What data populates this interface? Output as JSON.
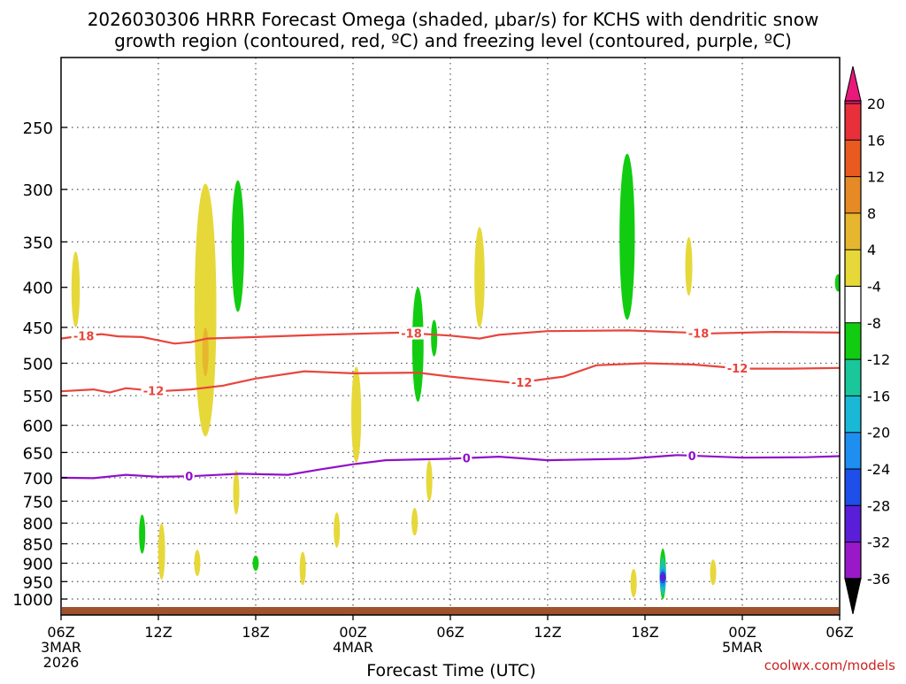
{
  "title_line1": "2026030306 HRRR Forecast Omega (shaded, μbar/s) for KCHS with dendritic snow",
  "title_line2": "growth region (contoured, red, ºC) and freezing level (contoured, purple, ºC)",
  "xlabel": "Forecast Time (UTC)",
  "credit": "coolwx.com/models",
  "colors": {
    "omega_pos_4": "#e6d839",
    "omega_pos_8": "#e6b72e",
    "omega_pos_12": "#e68a25",
    "omega_pos_16": "#e85a1f",
    "omega_pos_20": "#e8303a",
    "omega_pos_max": "#e8197a",
    "omega_neg_8": "#12cc12",
    "omega_neg_12": "#19c79a",
    "omega_neg_16": "#19b8d6",
    "omega_neg_20": "#1e8ef0",
    "omega_neg_24": "#1e4fe8",
    "omega_neg_28": "#5a1ed8",
    "omega_neg_32": "#9919c9",
    "omega_neg_36": "#a0a0a0",
    "omega_neg_min": "#000000",
    "dgz_contour": "#e8453c",
    "freezing_contour": "#9010c8",
    "terrain": "#a0522d",
    "credit": "#cc2222"
  },
  "chart_data": {
    "type": "heatmap",
    "y_axis": {
      "label": "",
      "scale": "log-pressure",
      "range_hPa": [
        200,
        1040
      ],
      "ticks": [
        250,
        300,
        350,
        400,
        450,
        500,
        550,
        600,
        650,
        700,
        750,
        800,
        850,
        900,
        950,
        1000
      ]
    },
    "x_axis": {
      "label": "Forecast Time (UTC)",
      "range_hours": [
        0,
        48
      ],
      "ticks": [
        {
          "hour": 0,
          "label": "06Z",
          "sub1": "3MAR",
          "sub2": "2026"
        },
        {
          "hour": 6,
          "label": "12Z"
        },
        {
          "hour": 12,
          "label": "18Z"
        },
        {
          "hour": 18,
          "label": "00Z",
          "sub1": "4MAR"
        },
        {
          "hour": 24,
          "label": "06Z"
        },
        {
          "hour": 30,
          "label": "12Z"
        },
        {
          "hour": 36,
          "label": "18Z"
        },
        {
          "hour": 42,
          "label": "00Z",
          "sub1": "5MAR"
        },
        {
          "hour": 48,
          "label": "06Z"
        }
      ]
    },
    "grid": true,
    "colorbar": {
      "ticks": [
        20,
        16,
        12,
        8,
        4,
        -4,
        -8,
        -12,
        -16,
        -20,
        -24,
        -28,
        -32,
        -36
      ],
      "bins": [
        {
          "from": 20,
          "to": 24,
          "color": "#e8197a"
        },
        {
          "from": 16,
          "to": 20,
          "color": "#e8303a"
        },
        {
          "from": 12,
          "to": 16,
          "color": "#e85a1f"
        },
        {
          "from": 8,
          "to": 12,
          "color": "#e68a25"
        },
        {
          "from": 4,
          "to": 8,
          "color": "#e6b72e"
        },
        {
          "from": 4,
          "to": 4,
          "color": "#e6d839"
        },
        {
          "from": -4,
          "to": 4,
          "color": "#ffffff"
        },
        {
          "from": -8,
          "to": -4,
          "color": "#12cc12"
        },
        {
          "from": -12,
          "to": -8,
          "color": "#19c79a"
        },
        {
          "from": -16,
          "to": -12,
          "color": "#19b8d6"
        },
        {
          "from": -20,
          "to": -16,
          "color": "#1e8ef0"
        },
        {
          "from": -24,
          "to": -20,
          "color": "#1e4fe8"
        },
        {
          "from": -28,
          "to": -24,
          "color": "#5a1ed8"
        },
        {
          "from": -32,
          "to": -28,
          "color": "#9919c9"
        },
        {
          "from": -36,
          "to": -32,
          "color": "#a0a0a0"
        }
      ]
    },
    "omega_features": [
      {
        "hour": 0.9,
        "top": 360,
        "bottom": 450,
        "value": 4
      },
      {
        "hour": 8.9,
        "top": 295,
        "bottom": 620,
        "value": 4
      },
      {
        "hour": 8.9,
        "top": 450,
        "bottom": 520,
        "value": 8
      },
      {
        "hour": 10.9,
        "top": 292,
        "bottom": 430,
        "value": -8
      },
      {
        "hour": 5.0,
        "top": 780,
        "bottom": 875,
        "value": -8
      },
      {
        "hour": 6.2,
        "top": 800,
        "bottom": 945,
        "value": 4
      },
      {
        "hour": 10.8,
        "top": 685,
        "bottom": 780,
        "value": 4
      },
      {
        "hour": 8.4,
        "top": 865,
        "bottom": 935,
        "value": 4
      },
      {
        "hour": 12.0,
        "top": 880,
        "bottom": 920,
        "value": -8
      },
      {
        "hour": 14.9,
        "top": 870,
        "bottom": 960,
        "value": 4
      },
      {
        "hour": 17.0,
        "top": 775,
        "bottom": 860,
        "value": 4
      },
      {
        "hour": 18.2,
        "top": 505,
        "bottom": 670,
        "value": 4
      },
      {
        "hour": 22.0,
        "top": 400,
        "bottom": 560,
        "value": -8
      },
      {
        "hour": 23.0,
        "top": 440,
        "bottom": 490,
        "value": -8
      },
      {
        "hour": 21.8,
        "top": 765,
        "bottom": 830,
        "value": 4
      },
      {
        "hour": 22.7,
        "top": 665,
        "bottom": 750,
        "value": 4
      },
      {
        "hour": 25.8,
        "top": 335,
        "bottom": 450,
        "value": 4
      },
      {
        "hour": 34.9,
        "top": 270,
        "bottom": 440,
        "value": -8
      },
      {
        "hour": 38.7,
        "top": 345,
        "bottom": 410,
        "value": 4
      },
      {
        "hour": 47.9,
        "top": 385,
        "bottom": 405,
        "value": -8
      },
      {
        "hour": 35.3,
        "top": 915,
        "bottom": 995,
        "value": 4
      },
      {
        "hour": 40.2,
        "top": 890,
        "bottom": 960,
        "value": 4
      },
      {
        "hour": 37.1,
        "top": 862,
        "bottom": 1000,
        "value": -8
      },
      {
        "hour": 37.1,
        "top": 885,
        "bottom": 990,
        "value": -12
      },
      {
        "hour": 37.1,
        "top": 905,
        "bottom": 975,
        "value": -16
      },
      {
        "hour": 37.1,
        "top": 915,
        "bottom": 965,
        "value": -20
      },
      {
        "hour": 37.1,
        "top": 922,
        "bottom": 955,
        "value": -24
      },
      {
        "hour": 37.1,
        "top": 928,
        "bottom": 948,
        "value": -28
      }
    ],
    "contours": [
      {
        "name": "-18",
        "color_key": "dgz_contour",
        "labels": [
          {
            "hour": 1.4,
            "text": "-18"
          },
          {
            "hour": 21.6,
            "text": "-18"
          },
          {
            "hour": 39.3,
            "text": "-18"
          }
        ],
        "points": [
          [
            0,
            465
          ],
          [
            1,
            462
          ],
          [
            2.5,
            459
          ],
          [
            3.5,
            462
          ],
          [
            5,
            463
          ],
          [
            7,
            472
          ],
          [
            8,
            470
          ],
          [
            9,
            465
          ],
          [
            12,
            463
          ],
          [
            16,
            460
          ],
          [
            19,
            458
          ],
          [
            21,
            457
          ],
          [
            24,
            461
          ],
          [
            25.8,
            465
          ],
          [
            27,
            460
          ],
          [
            30,
            455
          ],
          [
            35,
            454
          ],
          [
            40,
            458
          ],
          [
            44,
            456
          ],
          [
            48,
            457
          ]
        ]
      },
      {
        "name": "-12",
        "color_key": "dgz_contour",
        "labels": [
          {
            "hour": 5.7,
            "text": "-12"
          },
          {
            "hour": 28.4,
            "text": "-12"
          },
          {
            "hour": 41.7,
            "text": "-12"
          }
        ],
        "points": [
          [
            0,
            543
          ],
          [
            2,
            540
          ],
          [
            3,
            545
          ],
          [
            4,
            538
          ],
          [
            6,
            543
          ],
          [
            8,
            540
          ],
          [
            10,
            534
          ],
          [
            12,
            523
          ],
          [
            15,
            512
          ],
          [
            18,
            515
          ],
          [
            22,
            514
          ],
          [
            24,
            520
          ],
          [
            26,
            525
          ],
          [
            28,
            530
          ],
          [
            31,
            520
          ],
          [
            33,
            503
          ],
          [
            36,
            500
          ],
          [
            39,
            502
          ],
          [
            42,
            508
          ],
          [
            45,
            508
          ],
          [
            48,
            507
          ]
        ]
      },
      {
        "name": "0",
        "color_key": "freezing_contour",
        "labels": [
          {
            "hour": 7.9,
            "text": "0"
          },
          {
            "hour": 25.0,
            "text": "0"
          },
          {
            "hour": 38.9,
            "text": "0"
          }
        ],
        "points": [
          [
            0,
            700
          ],
          [
            2,
            701
          ],
          [
            4,
            694
          ],
          [
            6,
            698
          ],
          [
            8,
            697
          ],
          [
            11,
            692
          ],
          [
            14,
            694
          ],
          [
            16,
            683
          ],
          [
            18,
            673
          ],
          [
            20,
            665
          ],
          [
            24,
            662
          ],
          [
            27,
            658
          ],
          [
            30,
            665
          ],
          [
            35,
            662
          ],
          [
            38,
            655
          ],
          [
            42,
            660
          ],
          [
            46,
            659
          ],
          [
            48,
            657
          ]
        ]
      }
    ]
  }
}
